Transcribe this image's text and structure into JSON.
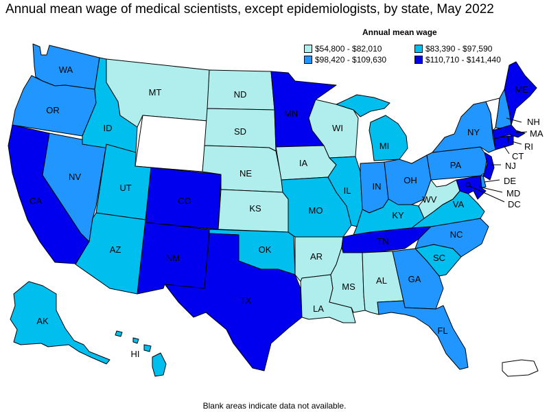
{
  "title": "Annual mean wage of medical scientists, except epidemiologists, by state, May 2022",
  "legend": {
    "title": "Annual mean wage",
    "items": [
      {
        "label": "$54,800 - $82,010",
        "color": "#b0eeee"
      },
      {
        "label": "$83,390 - $97,590",
        "color": "#00bfee"
      },
      {
        "label": "$98,420 - $109,630",
        "color": "#2196ff"
      },
      {
        "label": "$110,710 - $141,440",
        "color": "#0000ee"
      }
    ]
  },
  "footnote": "Blank areas indicate data not available.",
  "colors": {
    "bin1": "#b0eeee",
    "bin2": "#00bfee",
    "bin3": "#2196ff",
    "bin4": "#0000ee",
    "na": "#ffffff"
  },
  "states": {
    "WA": {
      "label": "WA",
      "bin": 3
    },
    "OR": {
      "label": "OR",
      "bin": 3
    },
    "CA": {
      "label": "CA",
      "bin": 4
    },
    "NV": {
      "label": "NV",
      "bin": 3
    },
    "ID": {
      "label": "ID",
      "bin": 2
    },
    "MT": {
      "label": "MT",
      "bin": 1
    },
    "WY": {
      "label": "",
      "bin": 0
    },
    "UT": {
      "label": "UT",
      "bin": 2
    },
    "AZ": {
      "label": "AZ",
      "bin": 2
    },
    "CO": {
      "label": "CO",
      "bin": 4
    },
    "NM": {
      "label": "NM",
      "bin": 4
    },
    "ND": {
      "label": "ND",
      "bin": 1
    },
    "SD": {
      "label": "SD",
      "bin": 1
    },
    "NE": {
      "label": "NE",
      "bin": 1
    },
    "KS": {
      "label": "KS",
      "bin": 1
    },
    "OK": {
      "label": "OK",
      "bin": 2
    },
    "TX": {
      "label": "TX",
      "bin": 4
    },
    "MN": {
      "label": "MN",
      "bin": 4
    },
    "IA": {
      "label": "IA",
      "bin": 1
    },
    "MO": {
      "label": "MO",
      "bin": 2
    },
    "AR": {
      "label": "AR",
      "bin": 1
    },
    "LA": {
      "label": "LA",
      "bin": 1
    },
    "WI": {
      "label": "WI",
      "bin": 1
    },
    "IL": {
      "label": "IL",
      "bin": 2
    },
    "MI": {
      "label": "MI",
      "bin": 2
    },
    "IN": {
      "label": "IN",
      "bin": 3
    },
    "OH": {
      "label": "OH",
      "bin": 3
    },
    "KY": {
      "label": "KY",
      "bin": 2
    },
    "TN": {
      "label": "TN",
      "bin": 4
    },
    "MS": {
      "label": "MS",
      "bin": 1
    },
    "AL": {
      "label": "AL",
      "bin": 1
    },
    "GA": {
      "label": "GA",
      "bin": 3
    },
    "FL": {
      "label": "FL",
      "bin": 3
    },
    "SC": {
      "label": "SC",
      "bin": 2
    },
    "NC": {
      "label": "NC",
      "bin": 3
    },
    "VA": {
      "label": "VA",
      "bin": 2
    },
    "WV": {
      "label": "WV",
      "bin": 1
    },
    "PA": {
      "label": "PA",
      "bin": 3
    },
    "NY": {
      "label": "NY",
      "bin": 3
    },
    "VT": {
      "label": "",
      "bin": 0
    },
    "NH": {
      "label": "NH",
      "bin": 3
    },
    "ME": {
      "label": "ME",
      "bin": 4
    },
    "MA": {
      "label": "MA",
      "bin": 4
    },
    "CT": {
      "label": "CT",
      "bin": 4
    },
    "RI": {
      "label": "RI",
      "bin": 4
    },
    "NJ": {
      "label": "NJ",
      "bin": 4
    },
    "DE": {
      "label": "DE",
      "bin": 3
    },
    "MD": {
      "label": "MD",
      "bin": 4
    },
    "DC": {
      "label": "DC",
      "bin": 4
    },
    "AK": {
      "label": "AK",
      "bin": 2
    },
    "HI": {
      "label": "HI",
      "bin": 2
    },
    "PR": {
      "label": "",
      "bin": 0
    }
  }
}
